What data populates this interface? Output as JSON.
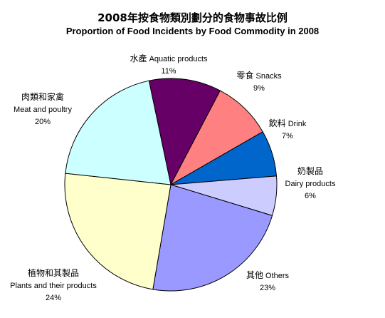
{
  "chart_data": {
    "type": "pie",
    "title": "2008年按食物類別劃分的食物事故比例",
    "subtitle": "Proportion of Food Incidents by Food Commodity in 2008",
    "slices": [
      {
        "label_zh": "水產",
        "label_en": "Aquatic products",
        "value": 11,
        "percent": "11%",
        "color": "#660066"
      },
      {
        "label_zh": "零食",
        "label_en": "Snacks",
        "value": 9,
        "percent": "9%",
        "color": "#ff8080"
      },
      {
        "label_zh": "飲料",
        "label_en": "Drink",
        "value": 7,
        "percent": "7%",
        "color": "#0066cc"
      },
      {
        "label_zh": "奶製品",
        "label_en": "Dairy products",
        "value": 6,
        "percent": "6%",
        "color": "#ccccff"
      },
      {
        "label_zh": "其他",
        "label_en": "Others",
        "value": 23,
        "percent": "23%",
        "color": "#9999ff"
      },
      {
        "label_zh": "植物和其製品",
        "label_en": "Plants and their products",
        "value": 24,
        "percent": "24%",
        "color": "#ffffcc"
      },
      {
        "label_zh": "肉類和家禽",
        "label_en": "Meat and poultry",
        "value": 20,
        "percent": "20%",
        "color": "#ccffff"
      }
    ]
  }
}
